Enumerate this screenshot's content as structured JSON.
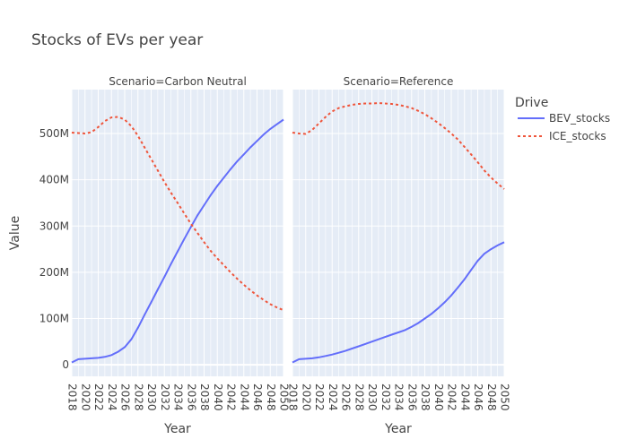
{
  "colors": {
    "bev": "#636efa",
    "ice": "#ef553b",
    "plot_bg": "#e5ecf6",
    "grid": "#ffffff"
  },
  "chart_data": {
    "type": "line",
    "title": "Stocks of EVs per year",
    "xlabel": "Year",
    "ylabel": "Value",
    "legend_title": "Drive",
    "legend_position": "top-right",
    "ylim": [
      -25000000,
      595000000
    ],
    "xlim": [
      2018,
      2050
    ],
    "yticks": [
      0,
      100000000,
      200000000,
      300000000,
      400000000,
      500000000
    ],
    "ytick_labels": [
      "0",
      "100M",
      "200M",
      "300M",
      "400M",
      "500M"
    ],
    "xticks": [
      2018,
      2020,
      2022,
      2024,
      2026,
      2028,
      2030,
      2032,
      2034,
      2036,
      2038,
      2040,
      2042,
      2044,
      2046,
      2048,
      2050
    ],
    "xtick_labels": [
      "2018",
      "2020",
      "2022",
      "2024",
      "2026",
      "2028",
      "2030",
      "2032",
      "2034",
      "2036",
      "2038",
      "2040",
      "2042",
      "2044",
      "2046",
      "2048",
      "2050"
    ],
    "series_meta": [
      {
        "name": "BEV_stocks",
        "color": "#636efa",
        "dash": "solid"
      },
      {
        "name": "ICE_stocks",
        "color": "#ef553b",
        "dash": "dot"
      }
    ],
    "facets": [
      {
        "label": "Scenario=Carbon Neutral",
        "x": [
          2018,
          2019,
          2020,
          2021,
          2022,
          2023,
          2024,
          2025,
          2026,
          2027,
          2028,
          2029,
          2030,
          2031,
          2032,
          2033,
          2034,
          2035,
          2036,
          2037,
          2038,
          2039,
          2040,
          2041,
          2042,
          2043,
          2044,
          2045,
          2046,
          2047,
          2048,
          2049,
          2050
        ],
        "series": [
          {
            "name": "BEV_stocks",
            "values": [
              5000000,
              12000000,
              13000000,
              14000000,
              15000000,
              17000000,
              21000000,
              28000000,
              38000000,
              55000000,
              80000000,
              108000000,
              135000000,
              163000000,
              190000000,
              218000000,
              245000000,
              272000000,
              298000000,
              323000000,
              345000000,
              367000000,
              387000000,
              405000000,
              423000000,
              440000000,
              455000000,
              470000000,
              484000000,
              498000000,
              510000000,
              520000000,
              530000000
            ]
          },
          {
            "name": "ICE_stocks",
            "values": [
              502000000,
              501000000,
              500000000,
              503000000,
              514000000,
              527000000,
              535000000,
              536000000,
              530000000,
              516000000,
              495000000,
              470000000,
              445000000,
              420000000,
              395000000,
              372000000,
              350000000,
              327000000,
              305000000,
              285000000,
              265000000,
              246000000,
              230000000,
              215000000,
              200000000,
              186000000,
              173000000,
              161000000,
              150000000,
              140000000,
              131000000,
              124000000,
              118000000
            ]
          }
        ]
      },
      {
        "label": "Scenario=Reference",
        "x": [
          2018,
          2019,
          2020,
          2021,
          2022,
          2023,
          2024,
          2025,
          2026,
          2027,
          2028,
          2029,
          2030,
          2031,
          2032,
          2033,
          2034,
          2035,
          2036,
          2037,
          2038,
          2039,
          2040,
          2041,
          2042,
          2043,
          2044,
          2045,
          2046,
          2047,
          2048,
          2049,
          2050
        ],
        "series": [
          {
            "name": "BEV_stocks",
            "values": [
              5000000,
              12000000,
              13000000,
              14000000,
              16000000,
              19000000,
              22000000,
              26000000,
              30000000,
              35000000,
              40000000,
              45000000,
              50000000,
              55000000,
              60000000,
              65000000,
              70000000,
              75000000,
              82000000,
              90000000,
              100000000,
              110000000,
              122000000,
              135000000,
              150000000,
              167000000,
              185000000,
              205000000,
              225000000,
              240000000,
              250000000,
              258000000,
              265000000
            ]
          },
          {
            "name": "ICE_stocks",
            "values": [
              502000000,
              500000000,
              499000000,
              508000000,
              522000000,
              536000000,
              548000000,
              555000000,
              559000000,
              562000000,
              564000000,
              565000000,
              565000000,
              566000000,
              565000000,
              564000000,
              562000000,
              559000000,
              555000000,
              549000000,
              542000000,
              533000000,
              523000000,
              512000000,
              500000000,
              487000000,
              471000000,
              455000000,
              438000000,
              420000000,
              405000000,
              392000000,
              380000000
            ]
          }
        ]
      }
    ]
  }
}
